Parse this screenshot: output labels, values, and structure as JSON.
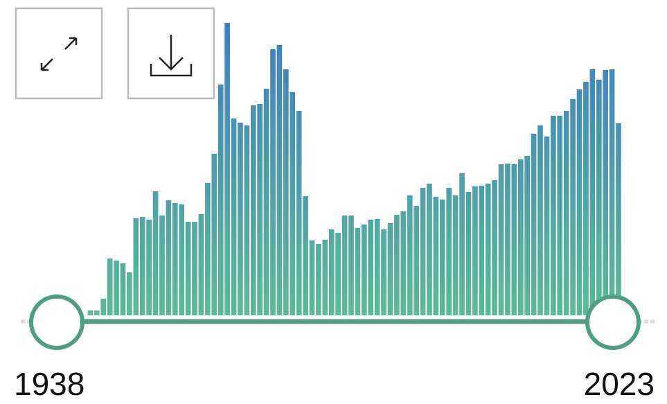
{
  "range": {
    "start": "1938",
    "end": "2023"
  },
  "chart_data": {
    "type": "bar",
    "values": [
      7,
      7,
      24,
      82,
      79,
      75,
      62,
      140,
      142,
      138,
      179,
      144,
      166,
      162,
      160,
      135,
      135,
      146,
      191,
      233,
      333,
      422,
      284,
      278,
      274,
      303,
      305,
      327,
      384,
      390,
      355,
      322,
      295,
      172,
      108,
      103,
      109,
      124,
      119,
      144,
      144,
      126,
      131,
      138,
      139,
      124,
      133,
      145,
      150,
      173,
      158,
      184,
      190,
      171,
      167,
      184,
      173,
      205,
      178,
      186,
      187,
      190,
      195,
      218,
      219,
      218,
      225,
      230,
      262,
      274,
      258,
      288,
      288,
      295,
      312,
      326,
      337,
      355,
      340,
      354,
      355,
      277
    ],
    "gradient": [
      "#5cba95",
      "#3d7ec2"
    ]
  }
}
